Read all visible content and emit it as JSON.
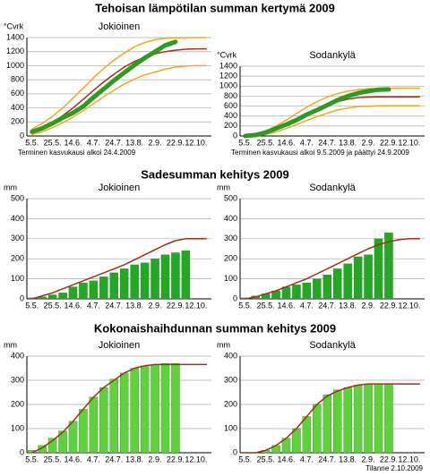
{
  "sections": [
    "Tehoisan lämpötilan summan kertymä 2009",
    "Sadesumman kehitys 2009",
    "Kokonaishaihdunnan summan kehitys 2009"
  ],
  "footer": "Tilanne 2.10.2009",
  "chart_data": [
    {
      "type": "line",
      "title": "Jokioinen",
      "y_label": "°Cvrk",
      "note": "Terminen kasvukausi alkoi 24.4.2009",
      "categories": [
        "5.5.",
        null,
        "25.5.",
        null,
        "14.6.",
        null,
        "4.7.",
        null,
        "24.7.",
        null,
        "13.8.",
        null,
        "2.9.",
        null,
        "22.9.",
        null,
        "12.10.",
        null
      ],
      "ylim": [
        0,
        1400
      ],
      "yticks": [
        0,
        200,
        400,
        600,
        800,
        1000,
        1200,
        1400
      ],
      "grid": true,
      "series": [
        {
          "color": "#f5a623",
          "line_width": 1.5,
          "values": [
            100,
            180,
            280,
            400,
            540,
            680,
            830,
            960,
            1080,
            1180,
            1270,
            1330,
            1370,
            1390,
            1398,
            1400,
            1400,
            1400
          ]
        },
        {
          "color": "#f5a623",
          "line_width": 1.5,
          "values": [
            20,
            60,
            120,
            190,
            270,
            360,
            460,
            560,
            650,
            740,
            810,
            870,
            910,
            950,
            980,
            995,
            1000,
            1000
          ]
        },
        {
          "color": "#a0301a",
          "line_width": 1.5,
          "values": [
            50,
            110,
            190,
            290,
            400,
            520,
            650,
            770,
            880,
            980,
            1060,
            1120,
            1170,
            1200,
            1220,
            1235,
            1240,
            1240
          ]
        },
        {
          "color": "#2e9a1e",
          "line_width": 5,
          "values": [
            60,
            110,
            180,
            260,
            330,
            420,
            550,
            670,
            790,
            900,
            1010,
            1110,
            1200,
            1290,
            1340,
            null,
            null,
            null
          ]
        }
      ]
    },
    {
      "type": "line",
      "title": "Sodankylä",
      "y_label": "°Cvrk",
      "note": "Terminen kasvukausi alkoi 9.5.2009 ja päättyi 24.9.2009",
      "categories": [
        "5.5.",
        null,
        "25.5.",
        null,
        "14.6.",
        null,
        "4.7.",
        null,
        "24.7.",
        null,
        "13.8.",
        null,
        "2.9.",
        null,
        "22.9.",
        null,
        "12.10.",
        null
      ],
      "ylim": [
        0,
        1400
      ],
      "yticks": [
        0,
        200,
        400,
        600,
        800,
        1000,
        1200,
        1400
      ],
      "grid": true,
      "series": [
        {
          "color": "#f5a623",
          "line_width": 1.5,
          "values": [
            0,
            30,
            100,
            200,
            320,
            450,
            580,
            690,
            780,
            850,
            900,
            930,
            950,
            955,
            958,
            960,
            960,
            960
          ]
        },
        {
          "color": "#f5a623",
          "line_width": 1.5,
          "values": [
            0,
            5,
            30,
            80,
            150,
            230,
            310,
            390,
            460,
            520,
            560,
            590,
            600,
            605,
            605,
            605,
            605,
            605
          ]
        },
        {
          "color": "#a0301a",
          "line_width": 1.5,
          "values": [
            0,
            15,
            60,
            130,
            220,
            320,
            430,
            530,
            620,
            690,
            740,
            770,
            780,
            785,
            785,
            785,
            785,
            785
          ]
        },
        {
          "color": "#2e9a1e",
          "line_width": 5,
          "values": [
            0,
            20,
            70,
            150,
            230,
            320,
            430,
            520,
            620,
            720,
            800,
            860,
            900,
            930,
            935,
            null,
            null,
            null
          ]
        }
      ]
    },
    {
      "type": "combo",
      "title": "Jokioinen",
      "y_label": "mm",
      "categories": [
        "5.5.",
        null,
        "25.5.",
        null,
        "14.6.",
        null,
        "4.7.",
        null,
        "24.7.",
        null,
        "13.8.",
        null,
        "2.9.",
        null,
        "22.9.",
        null,
        "12.10.",
        null
      ],
      "ylim": [
        0,
        500
      ],
      "yticks": [
        0,
        100,
        200,
        300,
        400,
        500
      ],
      "grid": true,
      "series": [
        {
          "type": "bar",
          "color": "#22a822",
          "values": [
            5,
            10,
            20,
            30,
            60,
            80,
            90,
            110,
            130,
            150,
            170,
            180,
            200,
            220,
            230,
            240,
            null,
            null
          ]
        },
        {
          "type": "line",
          "color": "#a0301a",
          "line_width": 1.5,
          "values": [
            0,
            15,
            30,
            50,
            70,
            90,
            110,
            130,
            150,
            170,
            195,
            220,
            245,
            270,
            290,
            300,
            300,
            300
          ]
        }
      ]
    },
    {
      "type": "combo",
      "title": "Sodankylä",
      "y_label": "mm",
      "categories": [
        "5.5.",
        null,
        "25.5.",
        null,
        "14.6.",
        null,
        "4.7.",
        null,
        "24.7.",
        null,
        "13.8.",
        null,
        "2.9.",
        null,
        "22.9.",
        null,
        "12.10.",
        null
      ],
      "ylim": [
        0,
        500
      ],
      "yticks": [
        0,
        100,
        200,
        300,
        400,
        500
      ],
      "grid": true,
      "series": [
        {
          "type": "bar",
          "color": "#22a822",
          "values": [
            5,
            15,
            25,
            40,
            60,
            70,
            80,
            100,
            120,
            150,
            175,
            210,
            220,
            300,
            330,
            null,
            null,
            null
          ]
        },
        {
          "type": "line",
          "color": "#a0301a",
          "line_width": 1.5,
          "values": [
            0,
            10,
            25,
            40,
            60,
            80,
            100,
            125,
            150,
            175,
            200,
            225,
            250,
            270,
            285,
            295,
            300,
            300
          ]
        }
      ]
    },
    {
      "type": "combo",
      "title": "Jokioinen",
      "y_label": "mm",
      "categories": [
        "5.5.",
        null,
        "25.5.",
        null,
        "14.6.",
        null,
        "4.7.",
        null,
        "24.7.",
        null,
        "13.8.",
        null,
        "2.9.",
        null,
        "22.9.",
        null,
        "12.10.",
        null
      ],
      "ylim": [
        0,
        400
      ],
      "yticks": [
        0,
        100,
        200,
        300,
        400
      ],
      "grid": true,
      "series": [
        {
          "type": "bar",
          "color": "#5fd13a",
          "values": [
            10,
            30,
            60,
            90,
            130,
            180,
            230,
            270,
            305,
            330,
            350,
            360,
            365,
            370,
            370,
            null,
            null,
            null
          ]
        },
        {
          "type": "line",
          "color": "#a0301a",
          "line_width": 1.5,
          "values": [
            0,
            20,
            50,
            85,
            130,
            180,
            230,
            270,
            300,
            330,
            350,
            360,
            365,
            365,
            365,
            365,
            365,
            365
          ]
        }
      ]
    },
    {
      "type": "combo",
      "title": "Sodankylä",
      "y_label": "mm",
      "categories": [
        "5.5.",
        null,
        "25.5.",
        null,
        "14.6.",
        null,
        "4.7.",
        null,
        "24.7.",
        null,
        "13.8.",
        null,
        "2.9.",
        null,
        "22.9.",
        null,
        "12.10.",
        null
      ],
      "ylim": [
        0,
        400
      ],
      "yticks": [
        0,
        100,
        200,
        300,
        400
      ],
      "grid": true,
      "series": [
        {
          "type": "bar",
          "color": "#5fd13a",
          "values": [
            null,
            null,
            10,
            30,
            60,
            100,
            150,
            200,
            240,
            260,
            270,
            280,
            285,
            285,
            285,
            null,
            null,
            null
          ]
        },
        {
          "type": "line",
          "color": "#a0301a",
          "line_width": 1.5,
          "values": [
            0,
            0,
            10,
            30,
            60,
            100,
            150,
            200,
            235,
            255,
            270,
            280,
            285,
            285,
            285,
            285,
            285,
            285
          ]
        }
      ]
    }
  ]
}
